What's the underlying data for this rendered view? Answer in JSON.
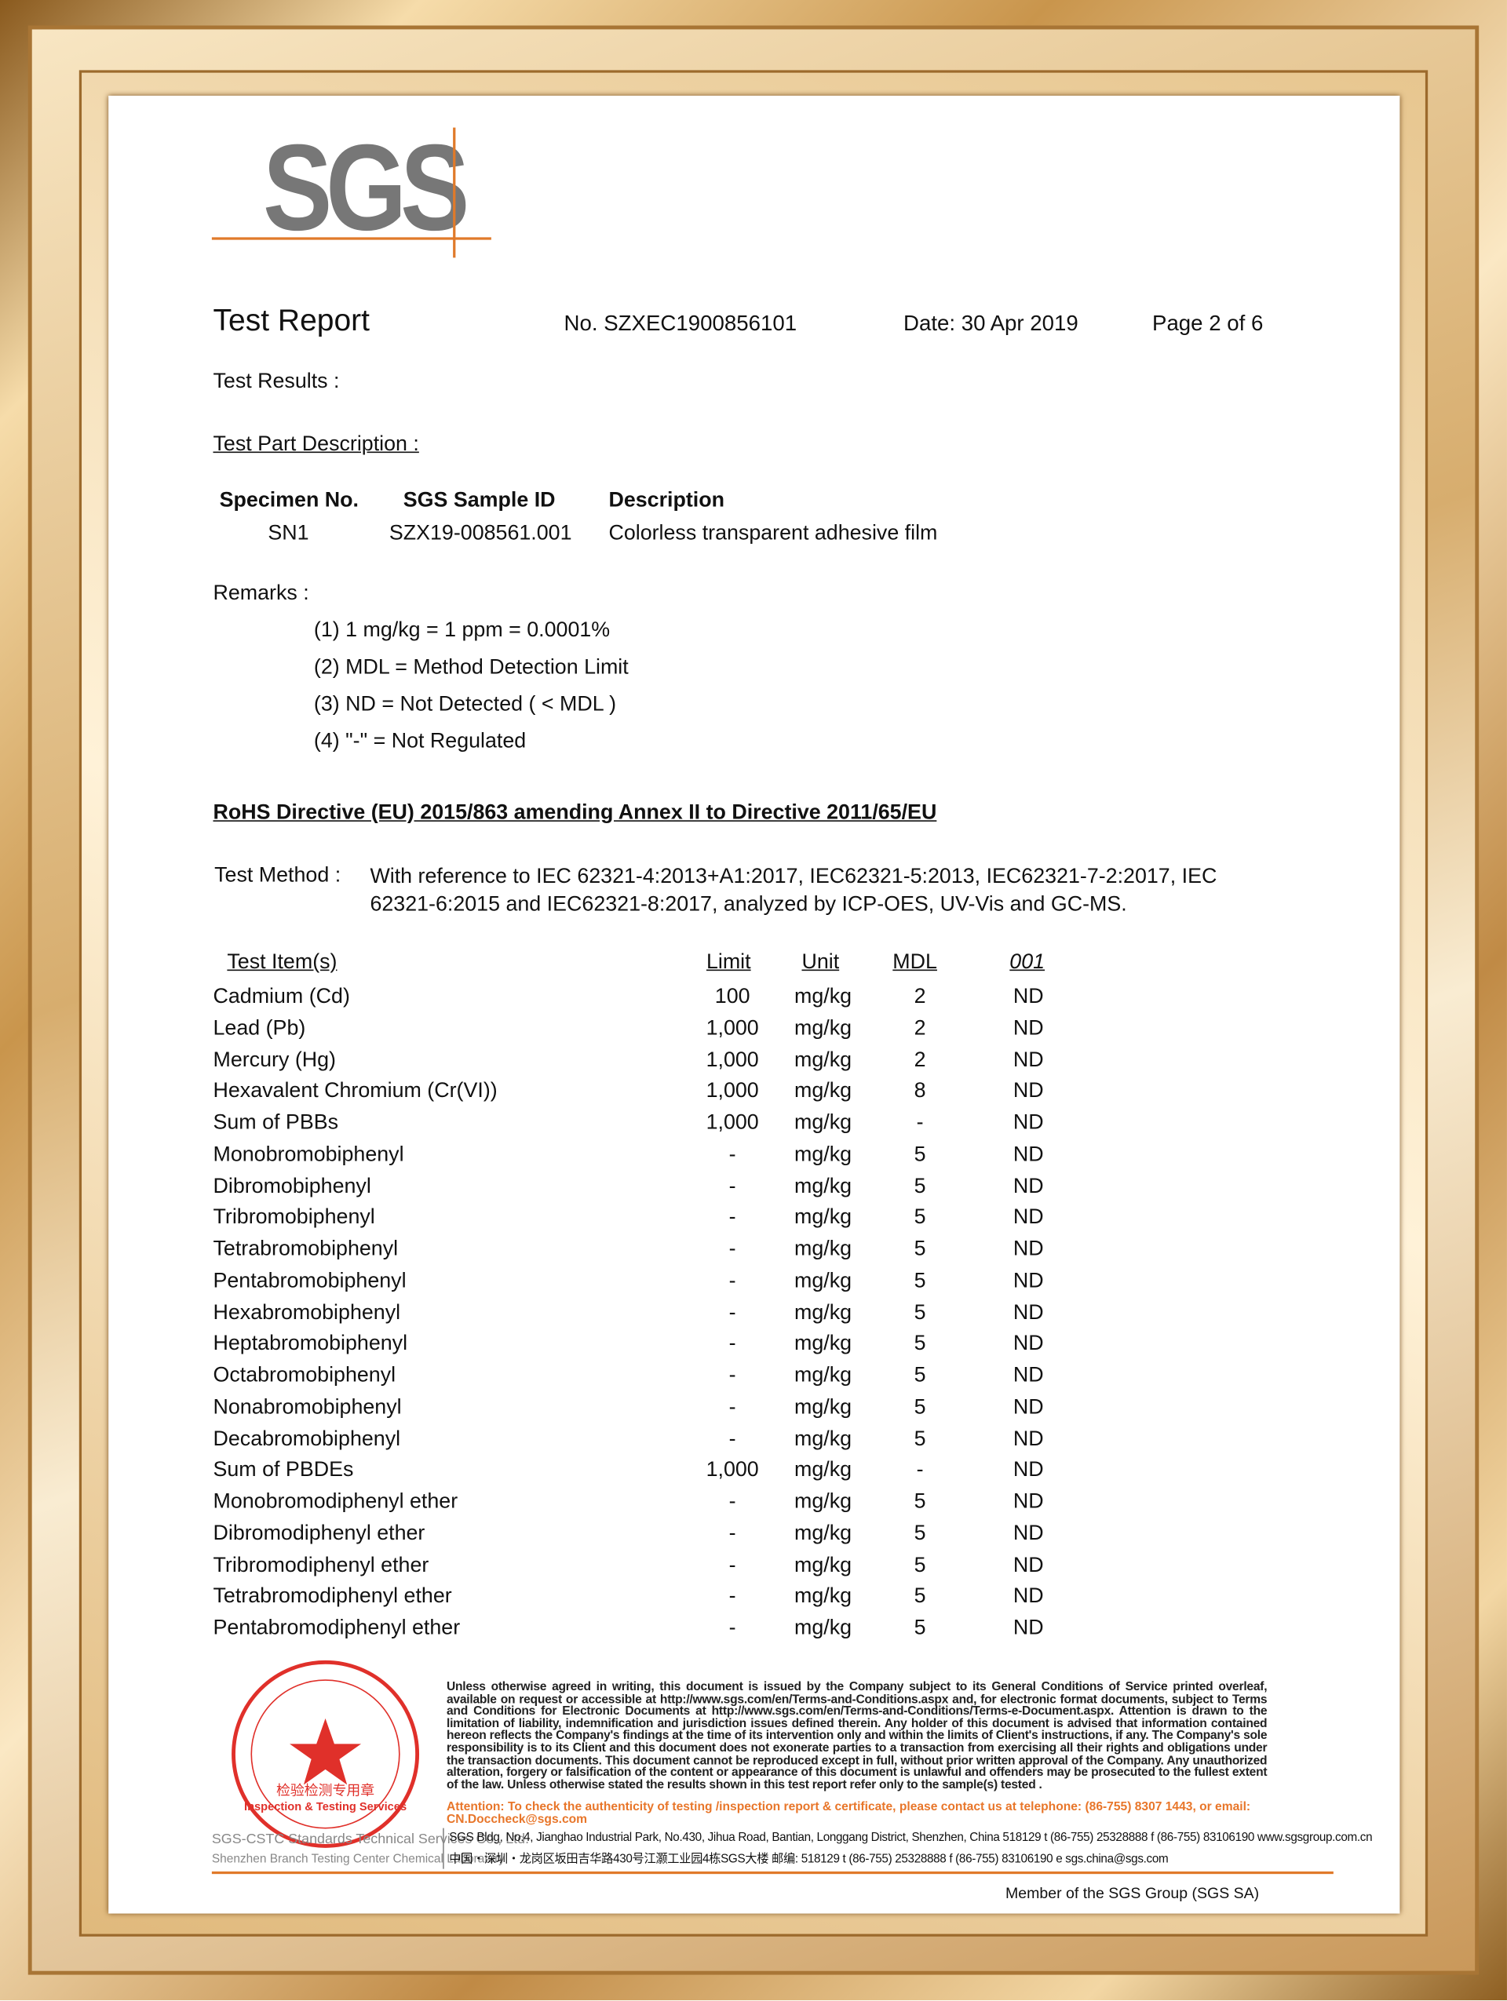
{
  "header": {
    "logo": "SGS",
    "title": "Test Report",
    "number": "No. SZXEC1900856101",
    "date": "Date: 30 Apr 2019",
    "page": "Page 2 of 6"
  },
  "results_label": "Test Results :",
  "part_description_label": "Test Part Description :",
  "specimen_table": {
    "headers": [
      "Specimen No.",
      "SGS Sample ID",
      "Description"
    ],
    "rows": [
      [
        "SN1",
        "SZX19-008561.001",
        "Colorless transparent adhesive film"
      ]
    ]
  },
  "remarks": {
    "label": "Remarks :",
    "items": [
      "(1) 1 mg/kg = 1 ppm = 0.0001%",
      "(2) MDL = Method Detection Limit",
      "(3) ND = Not Detected ( < MDL )",
      "(4) \"-\" = Not Regulated"
    ]
  },
  "directive": "RoHS Directive (EU) 2015/863 amending Annex II to Directive 2011/65/EU",
  "test_method": {
    "label": "Test Method :",
    "text": "With reference to IEC 62321-4:2013+A1:2017, IEC62321-5:2013, IEC62321-7-2:2017, IEC 62321-6:2015 and IEC62321-8:2017, analyzed by ICP-OES, UV-Vis and GC-MS."
  },
  "results_table": {
    "headers": [
      "Test Item(s)",
      "Limit",
      "Unit",
      "MDL",
      "001"
    ],
    "rows": [
      [
        "Cadmium (Cd)",
        "100",
        "mg/kg",
        "2",
        "ND"
      ],
      [
        "Lead (Pb)",
        "1,000",
        "mg/kg",
        "2",
        "ND"
      ],
      [
        "Mercury (Hg)",
        "1,000",
        "mg/kg",
        "2",
        "ND"
      ],
      [
        "Hexavalent Chromium (Cr(VI))",
        "1,000",
        "mg/kg",
        "8",
        "ND"
      ],
      [
        "Sum of PBBs",
        "1,000",
        "mg/kg",
        "-",
        "ND"
      ],
      [
        "Monobromobiphenyl",
        "-",
        "mg/kg",
        "5",
        "ND"
      ],
      [
        "Dibromobiphenyl",
        "-",
        "mg/kg",
        "5",
        "ND"
      ],
      [
        "Tribromobiphenyl",
        "-",
        "mg/kg",
        "5",
        "ND"
      ],
      [
        "Tetrabromobiphenyl",
        "-",
        "mg/kg",
        "5",
        "ND"
      ],
      [
        "Pentabromobiphenyl",
        "-",
        "mg/kg",
        "5",
        "ND"
      ],
      [
        "Hexabromobiphenyl",
        "-",
        "mg/kg",
        "5",
        "ND"
      ],
      [
        "Heptabromobiphenyl",
        "-",
        "mg/kg",
        "5",
        "ND"
      ],
      [
        "Octabromobiphenyl",
        "-",
        "mg/kg",
        "5",
        "ND"
      ],
      [
        "Nonabromobiphenyl",
        "-",
        "mg/kg",
        "5",
        "ND"
      ],
      [
        "Decabromobiphenyl",
        "-",
        "mg/kg",
        "5",
        "ND"
      ],
      [
        "Sum of PBDEs",
        "1,000",
        "mg/kg",
        "-",
        "ND"
      ],
      [
        "Monobromodiphenyl ether",
        "-",
        "mg/kg",
        "5",
        "ND"
      ],
      [
        "Dibromodiphenyl ether",
        "-",
        "mg/kg",
        "5",
        "ND"
      ],
      [
        "Tribromodiphenyl ether",
        "-",
        "mg/kg",
        "5",
        "ND"
      ],
      [
        "Tetrabromodiphenyl ether",
        "-",
        "mg/kg",
        "5",
        "ND"
      ],
      [
        "Pentabromodiphenyl ether",
        "-",
        "mg/kg",
        "5",
        "ND"
      ]
    ]
  },
  "footer": {
    "disclaimer": "Unless otherwise agreed in writing, this document is issued by the Company subject to its General Conditions of Service printed overleaf, available on request or accessible at http://www.sgs.com/en/Terms-and-Conditions.aspx and, for electronic format documents, subject to Terms and Conditions for Electronic Documents at http://www.sgs.com/en/Terms-and-Conditions/Terms-e-Document.aspx. Attention is drawn to the limitation of liability, indemnification and jurisdiction issues defined therein. Any holder of this document is advised that information contained hereon reflects the Company's findings at the time of its intervention only and within the limits of Client's instructions, if any. The Company's sole responsibility is to its Client and this document does not exonerate parties to a transaction from exercising all their rights and obligations under the transaction documents. This document cannot be reproduced except in full, without prior written approval of the Company. Any unauthorized alteration, forgery or falsification of the content or appearance of this document is unlawful and offenders may be prosecuted to the fullest extent of the law. Unless otherwise stated the results shown in this test report refer only to the sample(s) tested .",
    "attention": "Attention: To check the authenticity of testing /inspection report & certificate, please contact us at telephone: (86-755) 8307 1443, or email: CN.Doccheck@sgs.com",
    "address_en": "SGS Bldg, No.4, Jianghao Industrial Park, No.430, Jihua Road, Bantian, Longgang District, Shenzhen, China 518129   t (86-755) 25328888   f (86-755) 83106190   www.sgsgroup.com.cn",
    "address_cn": "中国・深圳・龙岗区坂田吉华路430号江灏工业园4栋SGS大楼   邮编: 518129   t (86-755) 25328888   f (86-755) 83106190   e sgs.china@sgs.com",
    "company": "SGS-CSTC Standards Technical Services Co., Ltd.",
    "branch": "Shenzhen Branch Testing Center Chemical Laboratory",
    "stamp_cn": "检验检测专用章",
    "stamp_en": "Inspection & Testing Services",
    "member": "Member of the SGS Group (SGS SA)"
  }
}
